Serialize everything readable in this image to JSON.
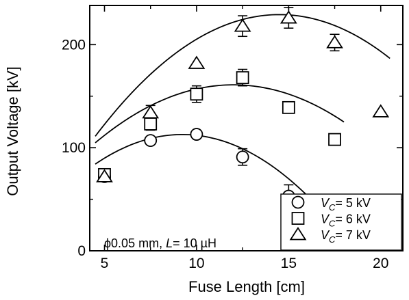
{
  "chart_data": {
    "type": "scatter",
    "title": "",
    "xlabel": "Fuse Length [cm]",
    "ylabel": "Output Voltage [kV]",
    "xlim": [
      4.2,
      21.2
    ],
    "ylim": [
      0,
      238
    ],
    "xticks": [
      5,
      10,
      15,
      20
    ],
    "yticks": [
      0,
      100,
      200
    ],
    "grid": false,
    "legend_position": "bottom-right",
    "annotation": {
      "prefix": "ϕ0.05 mm, ",
      "var": "L",
      "suffix": "= 10 µH"
    },
    "series": [
      {
        "name": "V_C= 5 kV",
        "legend": {
          "var": "V",
          "sub": "C",
          "rest": "= 5 kV"
        },
        "marker": "circle",
        "x": [
          5,
          7.5,
          10,
          12.5,
          15
        ],
        "y": [
          72,
          107,
          113,
          91,
          53
        ],
        "err": [
          0,
          0,
          0,
          8,
          11
        ],
        "fit": {
          "a": -1.286,
          "b": 23.72,
          "c": 3.42,
          "x0": 4.5,
          "x1": 17.3
        }
      },
      {
        "name": "V_C= 6 kV",
        "legend": {
          "var": "V",
          "sub": "C",
          "rest": "= 6 kV"
        },
        "marker": "square",
        "x": [
          5,
          7.5,
          10,
          12.5,
          15,
          17.5
        ],
        "y": [
          74,
          123,
          152,
          168,
          139,
          108
        ],
        "err": [
          0,
          6,
          8,
          8,
          5,
          0
        ],
        "fit": {
          "a": -1.0,
          "b": 24.0,
          "c": 17.0,
          "x0": 4.5,
          "x1": 18.0
        }
      },
      {
        "name": "V_C= 7 kV",
        "legend": {
          "var": "V",
          "sub": "C",
          "rest": "= 7 kV"
        },
        "marker": "triangle",
        "x": [
          5,
          7.5,
          10,
          12.5,
          15,
          17.5,
          20
        ],
        "y": [
          72,
          134,
          182,
          218,
          226,
          202,
          135
        ],
        "err": [
          0,
          7,
          0,
          10,
          10,
          8,
          0
        ],
        "fit": {
          "a": -1.18,
          "b": 34.22,
          "c": -18.96,
          "x0": 4.5,
          "x1": 20.5
        }
      }
    ]
  }
}
